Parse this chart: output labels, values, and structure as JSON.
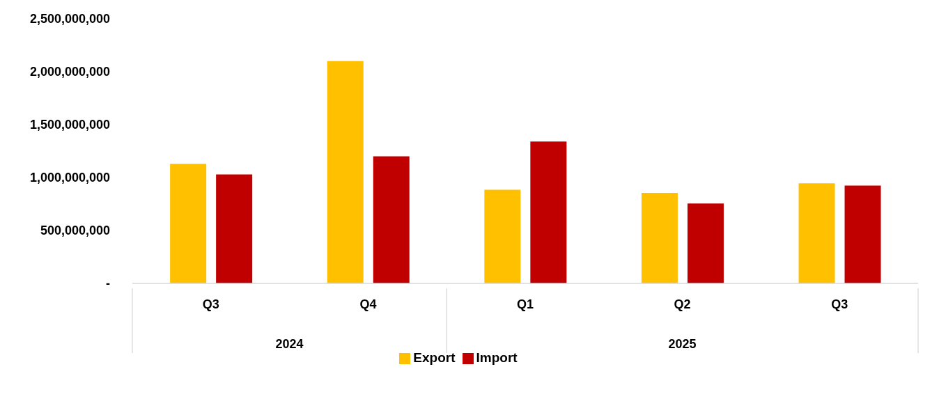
{
  "chart_data": {
    "type": "bar",
    "categories": [
      "Q3",
      "Q4",
      "Q1",
      "Q2",
      "Q3"
    ],
    "annotations": [
      "2024",
      "2025"
    ],
    "series": [
      {
        "name": "Export",
        "color": "#ffc000",
        "values": [
          1130000000,
          2100000000,
          885000000,
          855000000,
          945000000
        ]
      },
      {
        "name": "Import",
        "color": "#c00000",
        "values": [
          1030000000,
          1200000000,
          1340000000,
          755000000,
          925000000
        ]
      }
    ],
    "ylim": [
      0,
      2500000000
    ],
    "yticks": [
      {
        "value": 0,
        "label": "-"
      },
      {
        "value": 500000000,
        "label": "500,000,000"
      },
      {
        "value": 1000000000,
        "label": "1,000,000,000"
      },
      {
        "value": 1500000000,
        "label": "1,500,000,000"
      },
      {
        "value": 2000000000,
        "label": "2,000,000,000"
      },
      {
        "value": 2500000000,
        "label": "2,500,000,000"
      }
    ],
    "grid": false,
    "legend": "bottom"
  }
}
